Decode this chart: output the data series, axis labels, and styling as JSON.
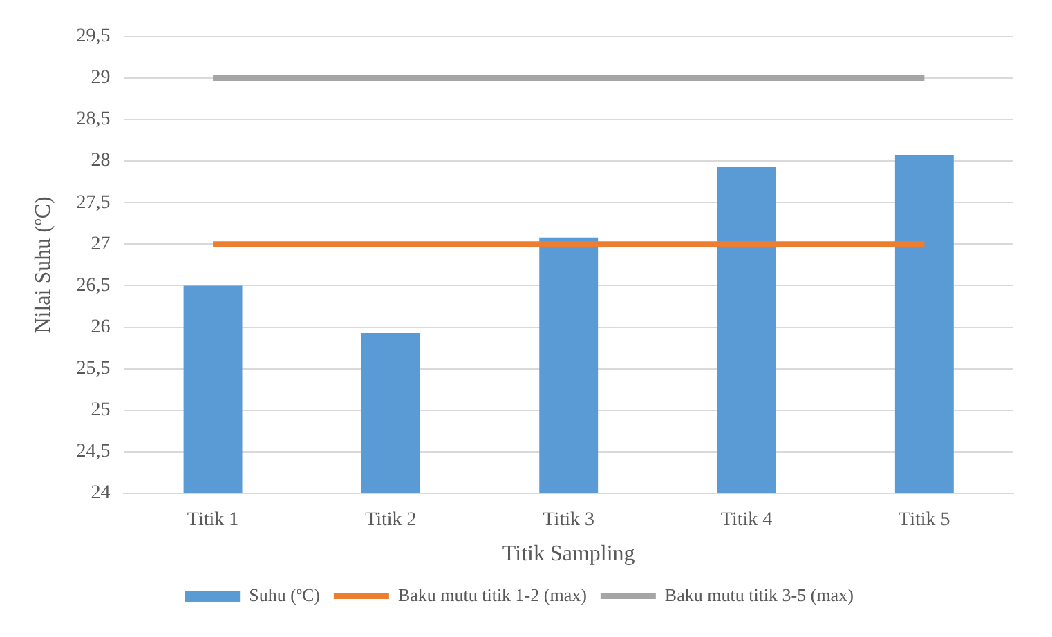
{
  "chart_data": {
    "type": "bar",
    "xlabel": "Titik Sampling",
    "ylabel": "Nilai Suhu (ºC)",
    "categories": [
      "Titik 1",
      "Titik 2",
      "Titik 3",
      "Titik 4",
      "Titik 5"
    ],
    "series": [
      {
        "name": "Suhu (ºC)",
        "color": "#5b9bd5",
        "values": [
          26.5,
          25.93,
          27.08,
          27.93,
          28.07
        ]
      },
      {
        "name": "Baku mutu titik 1-2 (max)",
        "type": "line",
        "color": "#ed7d31",
        "values": [
          27,
          27,
          27,
          27,
          27
        ]
      },
      {
        "name": "Baku mutu titik 3-5 (max)",
        "type": "line",
        "color": "#a5a5a5",
        "values": [
          29,
          29,
          29,
          29,
          29
        ]
      }
    ],
    "ylim": [
      24,
      29.5
    ],
    "yticks": [
      24,
      {
        "value": 24.5,
        "label": "24,5"
      },
      25,
      {
        "value": 25.5,
        "label": "25,5"
      },
      26,
      {
        "value": 26.5,
        "label": "26,5"
      },
      27,
      {
        "value": 27.5,
        "label": "27,5"
      },
      28,
      {
        "value": 28.5,
        "label": "28,5"
      },
      29,
      {
        "value": 29.5,
        "label": "29,5"
      }
    ],
    "grid": "y",
    "legend": "bottom",
    "marker": "none"
  }
}
